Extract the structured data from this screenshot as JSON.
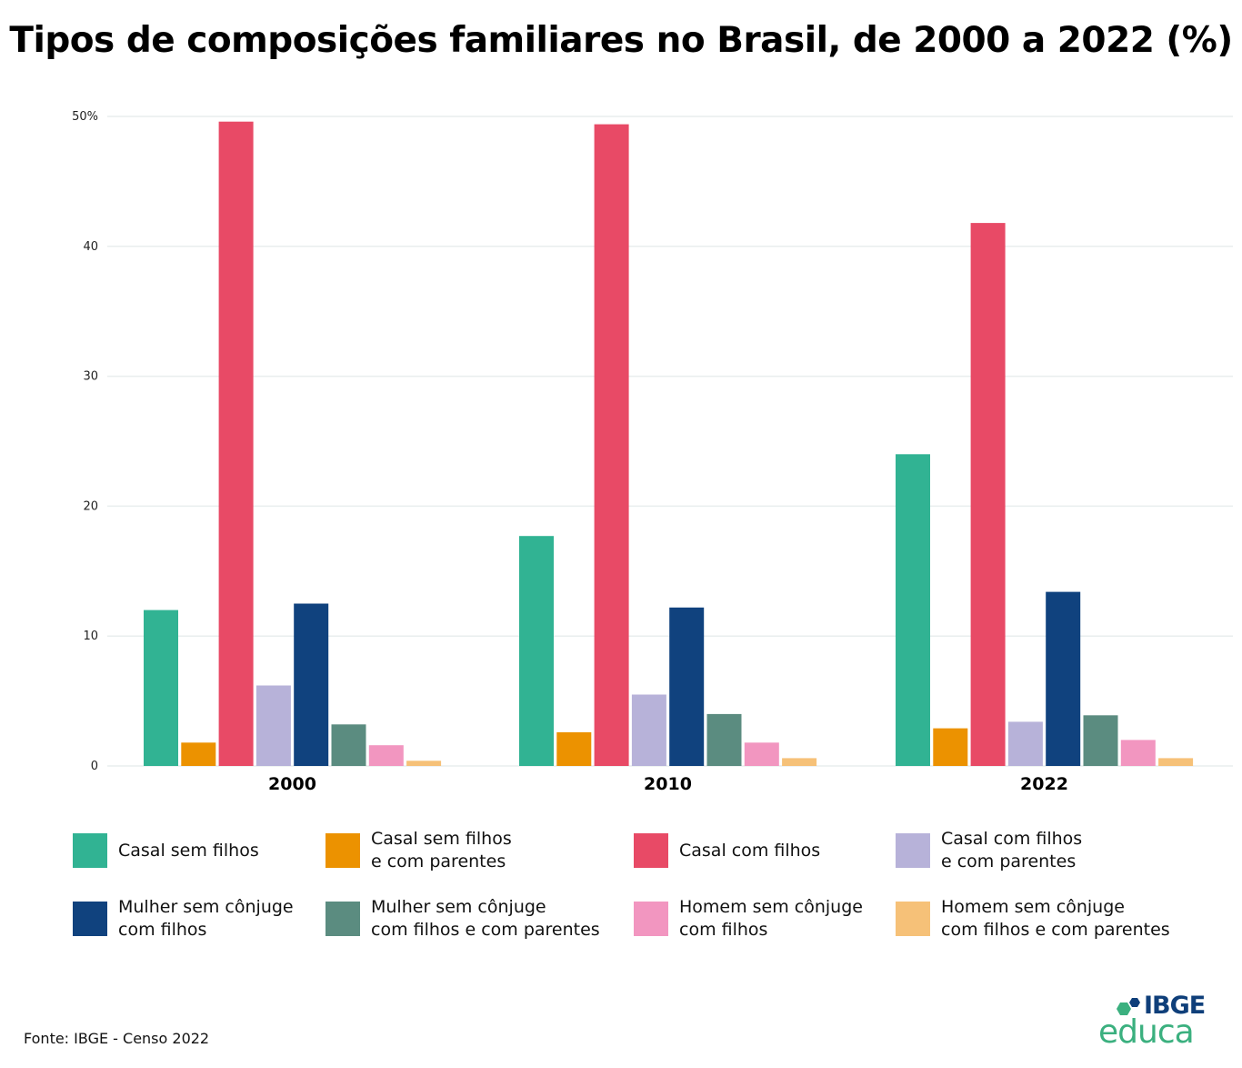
{
  "title": "Tipos de composições familiares no Brasil, de 2000 a 2022 (%)",
  "source": "Fonte: IBGE - Censo 2022",
  "logo": {
    "top": "IBGE",
    "bottom": "educa"
  },
  "chart_data": {
    "type": "bar",
    "title": "Tipos de composições familiares no Brasil, de 2000 a 2022 (%)",
    "categories": [
      "2000",
      "2010",
      "2022"
    ],
    "ylim": [
      0,
      50
    ],
    "yticks": [
      0,
      10,
      20,
      30,
      40,
      50
    ],
    "ytick_labels": [
      "0",
      "10",
      "20",
      "30",
      "40",
      "50%"
    ],
    "grid": true,
    "legend_position": "bottom",
    "series": [
      {
        "name": "Casal sem filhos",
        "color": "#31b393",
        "values": [
          12.0,
          17.7,
          24.0
        ]
      },
      {
        "name": "Casal sem filhos\ne com parentes",
        "color": "#ec9200",
        "values": [
          1.8,
          2.6,
          2.9
        ]
      },
      {
        "name": "Casal com filhos",
        "color": "#e84a66",
        "values": [
          49.6,
          49.4,
          41.8
        ]
      },
      {
        "name": "Casal com filhos\ne com parentes",
        "color": "#b7b2d9",
        "values": [
          6.2,
          5.5,
          3.4
        ]
      },
      {
        "name": "Mulher sem cônjuge\ncom filhos",
        "color": "#10427e",
        "values": [
          12.5,
          12.2,
          13.4
        ]
      },
      {
        "name": "Mulher sem cônjuge\ncom filhos e com parentes",
        "color": "#5b8c80",
        "values": [
          3.2,
          4.0,
          3.9
        ]
      },
      {
        "name": "Homem sem cônjuge\ncom filhos",
        "color": "#f296c0",
        "values": [
          1.6,
          1.8,
          2.0
        ]
      },
      {
        "name": "Homem sem cônjuge\ncom filhos e com parentes",
        "color": "#f6c178",
        "values": [
          0.4,
          0.6,
          0.6
        ]
      }
    ]
  }
}
